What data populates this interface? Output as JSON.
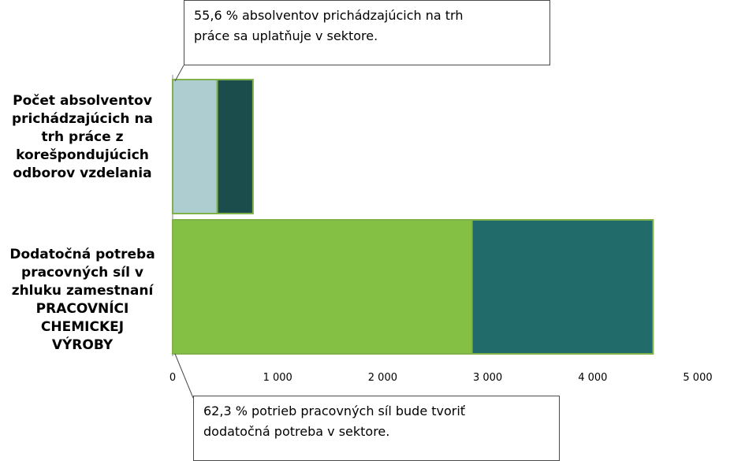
{
  "chart_data": {
    "type": "bar",
    "orientation": "horizontal",
    "stacked": true,
    "categories": [
      "Počet absolventov prichádzajúcich na trh práce z korešpondujúcich odborov vzdelania",
      "Dodatočná potreba pracovných síl v zhluku zamestnaní PRACOVNÍCI CHEMICKEJ VÝROBY"
    ],
    "category_lines": [
      [
        "Počet absolventov",
        "prichádzajúcich na",
        "trh práce z",
        "korešpondujúcich",
        "odborov vzdelania"
      ],
      [
        "Dodatočná potreba",
        "pracovných síl v",
        "zhluku zamestnaní",
        "PRACOVNÍCI",
        "CHEMICKEJ",
        "VÝROBY"
      ]
    ],
    "bars": [
      {
        "segments": [
          {
            "value": 425,
            "color": "#aecdd0"
          },
          {
            "value": 340,
            "color": "#1a4d4b"
          }
        ]
      },
      {
        "segments": [
          {
            "value": 2850,
            "color": "#84c043"
          },
          {
            "value": 1725,
            "color": "#216b6a"
          }
        ]
      }
    ],
    "xlim": [
      0,
      5000
    ],
    "ticks": [
      0,
      1000,
      2000,
      3000,
      4000,
      5000
    ],
    "tick_labels": [
      "0",
      "1 000",
      "2 000",
      "3 000",
      "4 000",
      "5 000"
    ],
    "legend": "none",
    "grid": false
  },
  "callouts": {
    "top": [
      "55,6 % absolventov prichádzajúcich na trh",
      "práce sa uplatňuje v sektore."
    ],
    "bottom": [
      "62,3 % potrieb pracovných síl bude tvoriť",
      "dodatočná potreba v sektore."
    ]
  }
}
